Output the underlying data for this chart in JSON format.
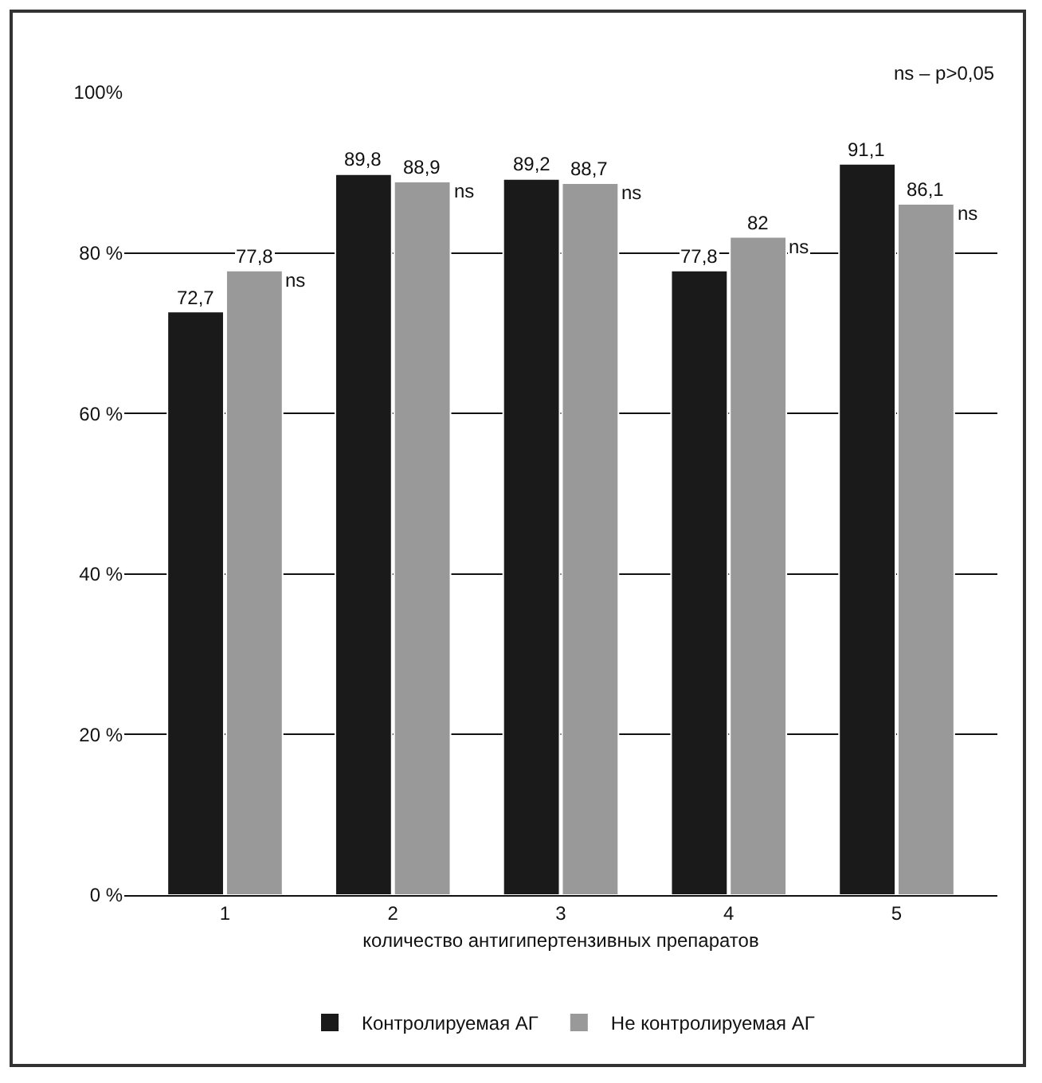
{
  "chart_data": {
    "type": "bar",
    "xlabel": "количество антигипертензивных препаратов",
    "categories": [
      "1",
      "2",
      "3",
      "4",
      "5"
    ],
    "series": [
      {
        "name": "Контролируемая АГ",
        "color": "#1a1a1a",
        "values": [
          72.7,
          89.8,
          89.2,
          77.8,
          91.1
        ],
        "value_labels": [
          "72,7",
          "89,8",
          "89,2",
          "77,8",
          "91,1"
        ]
      },
      {
        "name": "Не контролируемая АГ",
        "color": "#999999",
        "values": [
          77.8,
          88.9,
          88.7,
          82,
          86.1
        ],
        "value_labels": [
          "77,8",
          "88,9",
          "88,7",
          "82",
          "86,1"
        ]
      }
    ],
    "ylim": [
      0,
      100
    ],
    "yticks": [
      {
        "value": 0,
        "label": "0 %"
      },
      {
        "value": 20,
        "label": "20 %"
      },
      {
        "value": 40,
        "label": "40 %"
      },
      {
        "value": 60,
        "label": "60 %"
      },
      {
        "value": 80,
        "label": "80 %"
      },
      {
        "value": 100,
        "label": "100%"
      }
    ],
    "grid": "y",
    "legend": "bottom",
    "annotations": [
      "ns – p>0,05",
      "ns",
      "ns",
      "ns",
      "ns",
      "ns"
    ]
  }
}
